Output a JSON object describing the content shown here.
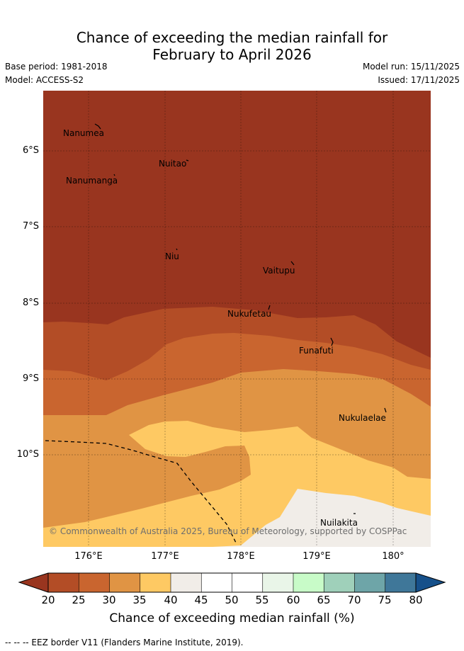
{
  "title": {
    "line1": "Chance of exceeding the median rainfall for",
    "line2": "February to April 2026"
  },
  "meta": {
    "base_period": "Base period: 1981-2018",
    "model": "Model: ACCESS-S2",
    "model_run": "Model run: 15/11/2025",
    "issued": "Issued: 17/11/2025"
  },
  "map": {
    "lat_labels": [
      "6°S",
      "7°S",
      "8°S",
      "9°S",
      "10°S"
    ],
    "lon_labels": [
      "176°E",
      "177°E",
      "178°E",
      "179°E",
      "180°"
    ],
    "islands": [
      {
        "name": "Nanumea"
      },
      {
        "name": "Nuitao"
      },
      {
        "name": "Nanumanga"
      },
      {
        "name": "Niu"
      },
      {
        "name": "Vaitupu"
      },
      {
        "name": "Nukufetau"
      },
      {
        "name": "Funafuti"
      },
      {
        "name": "Nukulaelae"
      },
      {
        "name": "Nuilakita"
      }
    ],
    "copyright": "© Commonwealth of Australia 2025, Bureau of Meteorology, supported by COSPPac"
  },
  "colorbar": {
    "ticks": [
      "20",
      "25",
      "30",
      "35",
      "40",
      "45",
      "50",
      "55",
      "60",
      "65",
      "70",
      "75",
      "80"
    ],
    "colors": [
      "#99351f",
      "#b34d26",
      "#c9652f",
      "#e09444",
      "#fec963",
      "#f1ede8",
      "#ffffff",
      "#ffffff",
      "#e9f5e8",
      "#c8fbc8",
      "#9fd0ba",
      "#6ea5a8",
      "#3f7799",
      "#16508a"
    ],
    "label": "Chance of exceeding median rainfall (%)"
  },
  "footnote": "-- -- -- EEZ border V11 (Flanders Marine Institute, 2019)."
}
